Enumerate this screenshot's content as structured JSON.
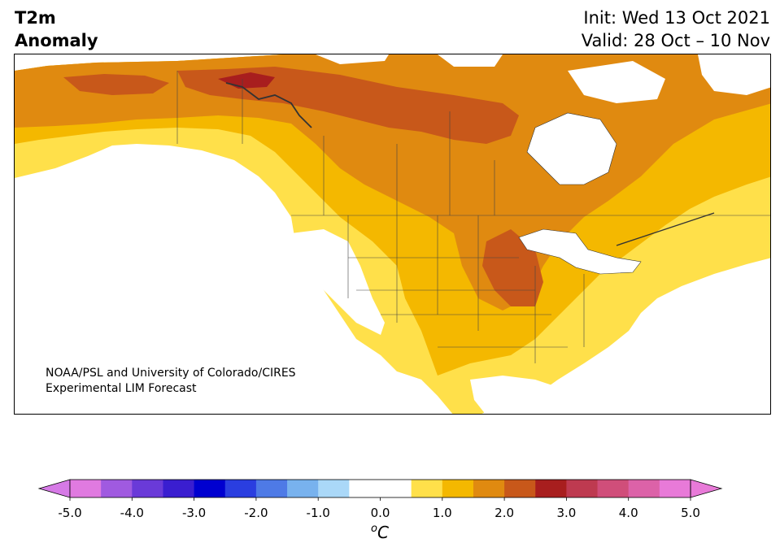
{
  "title": {
    "line1": "T2m",
    "line2": "Anomaly"
  },
  "init": {
    "line1": "Init: Wed 13 Oct 2021",
    "line2": "Valid: 28 Oct – 10 Nov"
  },
  "credit": {
    "line1": "NOAA/PSL and University of Colorado/CIRES",
    "line2": "Experimental LIM Forecast"
  },
  "colorbar": {
    "unit_label": "oC",
    "ticks": [
      "-5.0",
      "-4.0",
      "-3.0",
      "-2.0",
      "-1.0",
      "0.0",
      "1.0",
      "2.0",
      "3.0",
      "4.0",
      "5.0"
    ],
    "colors": [
      "#e07ae0",
      "#a05ae0",
      "#6a3ad8",
      "#3a1ed0",
      "#0000d0",
      "#2a3ee0",
      "#4e7ae6",
      "#78b2ee",
      "#aad8f8",
      "#ffffff",
      "#ffffff",
      "#ffe04a",
      "#f4b800",
      "#e08a10",
      "#c8581a",
      "#a81e1e",
      "#be3a50",
      "#d04e7a",
      "#dc62a8",
      "#e87ad8"
    ],
    "colors_extend_low": "#d67ae6",
    "colors_extend_high": "#e87ad8"
  },
  "anomaly_colors": {
    "white": "#ffffff",
    "yellow": "#ffe04a",
    "gold": "#f4b800",
    "orange": "#e08a10",
    "burnt": "#c8581a",
    "red": "#a81e1e",
    "water": "#ffffff"
  }
}
